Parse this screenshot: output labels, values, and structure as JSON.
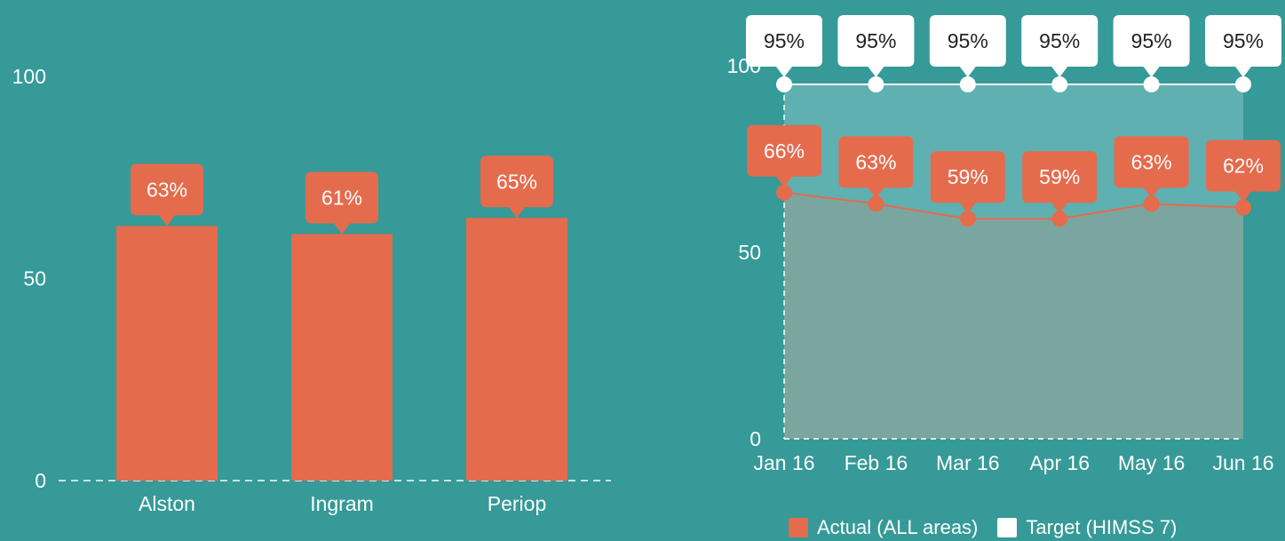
{
  "colors": {
    "background": "#359a98",
    "bar": "#e56b4d",
    "callout_actual": "#e56b4d",
    "callout_target": "#ffffff",
    "target_area": "#5fb0b0",
    "actual_area": "#7ba6a0",
    "axis_text": "#ffffff"
  },
  "chart_data": [
    {
      "type": "bar",
      "categories": [
        "Alston",
        "Ingram",
        "Periop"
      ],
      "values": [
        63,
        61,
        65
      ],
      "data_labels": [
        "63%",
        "61%",
        "65%"
      ],
      "y_ticks": [
        "0",
        "50",
        "100"
      ],
      "ylim": [
        0,
        100
      ],
      "grid": false
    },
    {
      "type": "area",
      "categories": [
        "Jan 16",
        "Feb 16",
        "Mar 16",
        "Apr 16",
        "May 16",
        "Jun 16"
      ],
      "y_ticks": [
        "0",
        "50",
        "100"
      ],
      "ylim": [
        0,
        100
      ],
      "grid": false,
      "legend_position": "bottom-right",
      "series": [
        {
          "name": "Actual (ALL areas)",
          "values": [
            66,
            63,
            59,
            59,
            63,
            62
          ],
          "data_labels": [
            "66%",
            "63%",
            "59%",
            "59%",
            "63%",
            "62%"
          ]
        },
        {
          "name": "Target (HIMSS 7)",
          "values": [
            95,
            95,
            95,
            95,
            95,
            95
          ],
          "data_labels": [
            "95%",
            "95%",
            "95%",
            "95%",
            "95%",
            "95%"
          ]
        }
      ]
    }
  ]
}
